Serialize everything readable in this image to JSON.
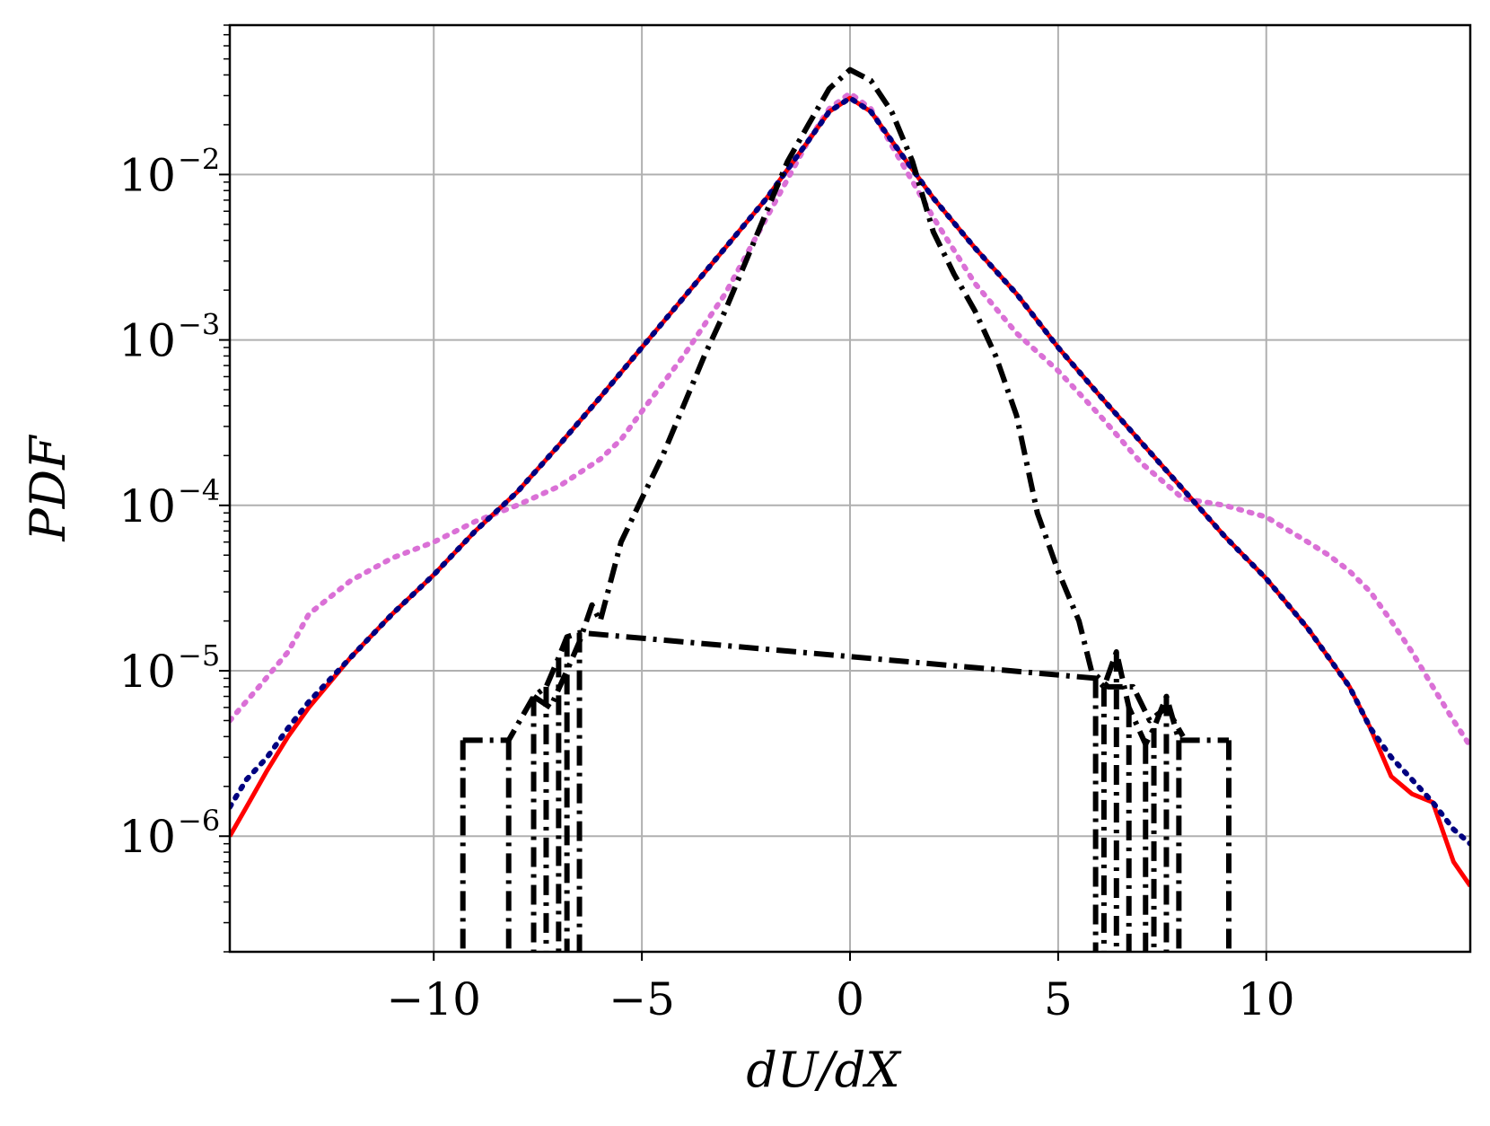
{
  "chart_data": {
    "type": "line",
    "title": "",
    "xlabel": "dU/dX",
    "ylabel": "PDF",
    "xscale": "linear",
    "yscale": "log",
    "xlim": [
      -14.9,
      14.9
    ],
    "ylim": [
      2e-07,
      0.08
    ],
    "grid": true,
    "legend": "none",
    "x_ticks": [
      -10,
      -5,
      0,
      5,
      10
    ],
    "x_tick_labels": [
      "−10",
      "−5",
      "0",
      "5",
      "10"
    ],
    "y_ticks": [
      1e-06,
      1e-05,
      0.0001,
      0.001,
      0.01
    ],
    "y_tick_labels": [
      {
        "base": "10",
        "exp": "−6"
      },
      {
        "base": "10",
        "exp": "−5"
      },
      {
        "base": "10",
        "exp": "−4"
      },
      {
        "base": "10",
        "exp": "−3"
      },
      {
        "base": "10",
        "exp": "−2"
      }
    ],
    "series": [
      {
        "color": "#da70d6",
        "style": "dotted",
        "x": [
          -14.9,
          -14.2,
          -13.5,
          -13.0,
          -12.0,
          -11.0,
          -10.0,
          -9.0,
          -8.0,
          -7.0,
          -6.0,
          -5.5,
          -5.0,
          -4.0,
          -3.0,
          -2.0,
          -1.0,
          -0.5,
          0.0,
          0.5,
          1.0,
          2.0,
          3.0,
          4.0,
          5.0,
          6.0,
          7.0,
          8.0,
          9.0,
          10.0,
          11.0,
          11.5,
          12.0,
          12.5,
          13.0,
          13.5,
          14.0,
          14.5,
          14.9
        ],
        "y": [
          5e-06,
          8e-06,
          1.3e-05,
          2.2e-05,
          3.5e-05,
          4.8e-05,
          6e-05,
          8e-05,
          0.0001,
          0.00013,
          0.00019,
          0.00025,
          0.00037,
          0.0008,
          0.0019,
          0.0055,
          0.016,
          0.025,
          0.031,
          0.025,
          0.015,
          0.0055,
          0.0022,
          0.0011,
          0.00065,
          0.00035,
          0.00018,
          0.00011,
          0.0001,
          8.5e-05,
          6e-05,
          5e-05,
          4e-05,
          3e-05,
          2e-05,
          1.3e-05,
          8e-06,
          5e-06,
          3.5e-06
        ]
      },
      {
        "color": "#ff0000",
        "style": "solid",
        "x": [
          -14.9,
          -14.5,
          -14.0,
          -13.5,
          -13.0,
          -12.0,
          -11.0,
          -10.0,
          -9.0,
          -8.0,
          -7.0,
          -6.0,
          -5.0,
          -4.0,
          -3.0,
          -2.0,
          -1.0,
          -0.5,
          0.0,
          0.5,
          1.0,
          2.0,
          3.0,
          4.0,
          5.0,
          6.0,
          7.0,
          8.0,
          9.0,
          10.0,
          11.0,
          12.0,
          12.5,
          13.0,
          13.5,
          14.0,
          14.5,
          14.9
        ],
        "y": [
          1e-06,
          1.5e-06,
          2.5e-06,
          4e-06,
          6e-06,
          1.2e-05,
          2.2e-05,
          3.8e-05,
          7e-05,
          0.00012,
          0.00023,
          0.00045,
          0.0009,
          0.0018,
          0.0036,
          0.0072,
          0.016,
          0.024,
          0.029,
          0.024,
          0.016,
          0.0072,
          0.0036,
          0.0019,
          0.0009,
          0.00046,
          0.00024,
          0.000125,
          6.5e-05,
          3.6e-05,
          1.8e-05,
          8e-06,
          4.5e-06,
          2.3e-06,
          1.8e-06,
          1.6e-06,
          7e-07,
          5e-07
        ]
      },
      {
        "color": "#000080",
        "style": "dotted",
        "x": [
          -14.9,
          -14.5,
          -14.0,
          -13.5,
          -13.0,
          -12.0,
          -11.0,
          -10.0,
          -9.0,
          -8.0,
          -7.0,
          -6.0,
          -5.0,
          -4.0,
          -3.0,
          -2.0,
          -1.0,
          -0.5,
          0.0,
          0.5,
          1.0,
          2.0,
          3.0,
          4.0,
          5.0,
          6.0,
          7.0,
          8.0,
          9.0,
          10.0,
          11.0,
          12.0,
          12.5,
          13.0,
          13.5,
          14.0,
          14.5,
          14.9
        ],
        "y": [
          1.5e-06,
          2.2e-06,
          3e-06,
          4.5e-06,
          6.5e-06,
          1.2e-05,
          2.2e-05,
          3.8e-05,
          7e-05,
          0.00012,
          0.00023,
          0.00045,
          0.0009,
          0.0018,
          0.0036,
          0.0072,
          0.016,
          0.024,
          0.029,
          0.024,
          0.016,
          0.0072,
          0.0036,
          0.0019,
          0.0009,
          0.00046,
          0.00024,
          0.000125,
          6.5e-05,
          3.6e-05,
          1.8e-05,
          8e-06,
          4.5e-06,
          3e-06,
          2.2e-06,
          1.6e-06,
          1.1e-06,
          9e-07
        ]
      },
      {
        "color": "#000000",
        "style": "dashdot",
        "x": [
          -7.6,
          -7.2,
          -6.8,
          -6.5,
          -6.2,
          -6.0,
          -5.5,
          -5.0,
          -4.5,
          -4.0,
          -3.5,
          -3.0,
          -2.5,
          -2.0,
          -1.5,
          -1.0,
          -0.5,
          0.0,
          0.5,
          1.0,
          1.5,
          2.0,
          2.5,
          3.0,
          3.5,
          4.0,
          4.5,
          5.0,
          5.5,
          5.8,
          6.2,
          6.8,
          7.2,
          7.6,
          8.0
        ],
        "y": [
          7e-06,
          6e-06,
          1e-05,
          1.5e-05,
          2.5e-05,
          2e-05,
          6e-05,
          0.00011,
          0.0002,
          0.0004,
          0.0008,
          0.0015,
          0.003,
          0.006,
          0.012,
          0.02,
          0.033,
          0.043,
          0.037,
          0.024,
          0.012,
          0.0045,
          0.0025,
          0.0015,
          0.0008,
          0.00035,
          9e-05,
          4e-05,
          2e-05,
          1e-05,
          8e-06,
          8e-06,
          5e-06,
          6e-06,
          4e-06
        ]
      },
      {
        "color": "#000000",
        "style": "dashdot",
        "x": [
          -9.3,
          -8.2,
          -7.6,
          -7.3,
          -7.0,
          -6.8,
          -6.5,
          5.9,
          6.1,
          6.4,
          6.7,
          7.1,
          7.3,
          7.6,
          7.9,
          9.1
        ],
        "y": [
          3.8e-06,
          3.8e-06,
          7e-06,
          8e-06,
          1.2e-05,
          1.6e-05,
          1.7e-05,
          9e-06,
          8e-06,
          1.3e-05,
          6e-06,
          3.6e-06,
          4.5e-06,
          7e-06,
          3.8e-06,
          3.8e-06
        ]
      }
    ]
  }
}
